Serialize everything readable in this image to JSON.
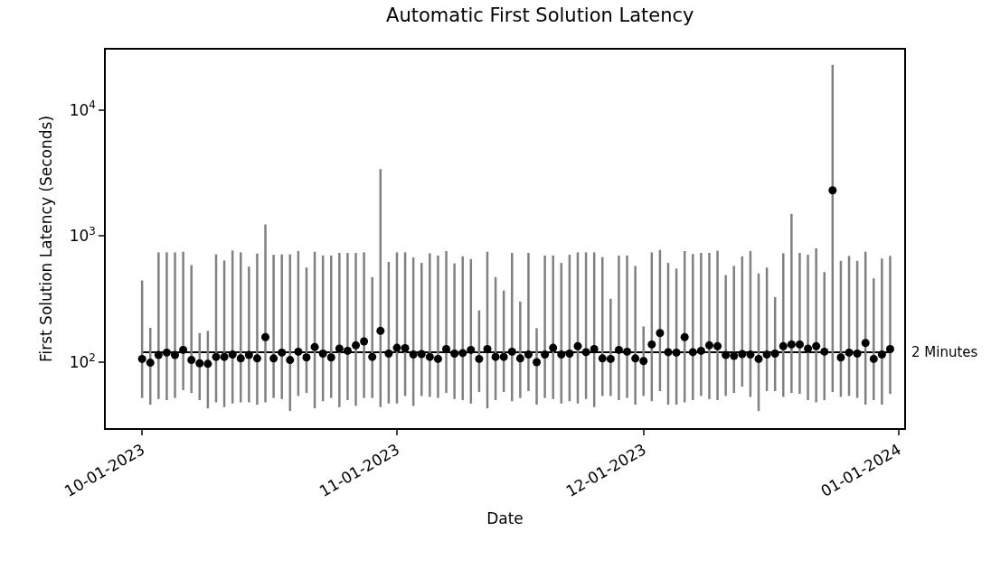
{
  "chart_data": {
    "type": "scatter",
    "title": "Automatic First Solution Latency",
    "xlabel": "Date",
    "ylabel": "First Solution Latency (Seconds)",
    "x": [
      "2023-10-01",
      "2023-10-02",
      "2023-10-03",
      "2023-10-04",
      "2023-10-05",
      "2023-10-06",
      "2023-10-07",
      "2023-10-08",
      "2023-10-09",
      "2023-10-10",
      "2023-10-11",
      "2023-10-12",
      "2023-10-13",
      "2023-10-14",
      "2023-10-15",
      "2023-10-16",
      "2023-10-17",
      "2023-10-18",
      "2023-10-19",
      "2023-10-20",
      "2023-10-21",
      "2023-10-22",
      "2023-10-23",
      "2023-10-24",
      "2023-10-25",
      "2023-10-26",
      "2023-10-27",
      "2023-10-28",
      "2023-10-29",
      "2023-10-30",
      "2023-10-31",
      "2023-11-01",
      "2023-11-02",
      "2023-11-03",
      "2023-11-04",
      "2023-11-05",
      "2023-11-06",
      "2023-11-07",
      "2023-11-08",
      "2023-11-09",
      "2023-11-10",
      "2023-11-11",
      "2023-11-12",
      "2023-11-13",
      "2023-11-14",
      "2023-11-15",
      "2023-11-16",
      "2023-11-17",
      "2023-11-18",
      "2023-11-19",
      "2023-11-20",
      "2023-11-21",
      "2023-11-22",
      "2023-11-23",
      "2023-11-24",
      "2023-11-25",
      "2023-11-26",
      "2023-11-27",
      "2023-11-28",
      "2023-11-29",
      "2023-11-30",
      "2023-12-01",
      "2023-12-02",
      "2023-12-03",
      "2023-12-04",
      "2023-12-05",
      "2023-12-06",
      "2023-12-07",
      "2023-12-08",
      "2023-12-09",
      "2023-12-10",
      "2023-12-11",
      "2023-12-12",
      "2023-12-13",
      "2023-12-14",
      "2023-12-15",
      "2023-12-16",
      "2023-12-17",
      "2023-12-18",
      "2023-12-19",
      "2023-12-20",
      "2023-12-21",
      "2023-12-22",
      "2023-12-23",
      "2023-12-24",
      "2023-12-25",
      "2023-12-26",
      "2023-12-27",
      "2023-12-28",
      "2023-12-29",
      "2023-12-30",
      "2023-12-31"
    ],
    "series": [
      {
        "color": "#000000",
        "values": [
          106,
          99,
          114,
          119,
          114,
          125,
          104,
          98,
          97,
          110,
          110,
          115,
          107,
          114,
          107,
          158,
          107,
          119,
          104,
          121,
          109,
          132,
          117,
          109,
          128,
          123,
          136,
          146,
          110,
          177,
          117,
          130,
          129,
          115,
          116,
          110,
          106,
          127,
          117,
          118,
          125,
          106,
          127,
          110,
          110,
          121,
          107,
          115,
          100,
          115,
          130,
          115,
          117,
          134,
          120,
          127,
          107,
          106,
          125,
          121,
          107,
          102,
          138,
          170,
          120,
          119,
          158,
          120,
          123,
          136,
          134,
          114,
          112,
          116,
          115,
          106,
          115,
          117,
          134,
          138,
          138,
          128,
          134,
          121,
          2300,
          109,
          119,
          117,
          142,
          106,
          115,
          127
        ],
        "errors": [
          [
            52,
            444
          ],
          [
            46,
            187
          ],
          [
            51,
            742
          ],
          [
            50,
            742
          ],
          [
            52,
            742
          ],
          [
            60,
            750
          ],
          [
            57,
            588
          ],
          [
            50,
            170
          ],
          [
            43,
            177
          ],
          [
            48,
            715
          ],
          [
            44,
            640
          ],
          [
            47,
            768
          ],
          [
            48,
            742
          ],
          [
            48,
            572
          ],
          [
            46,
            725
          ],
          [
            48,
            1234
          ],
          [
            52,
            710
          ],
          [
            51,
            715
          ],
          [
            41,
            715
          ],
          [
            54,
            760
          ],
          [
            57,
            563
          ],
          [
            43,
            750
          ],
          [
            49,
            700
          ],
          [
            52,
            700
          ],
          [
            44,
            735
          ],
          [
            50,
            735
          ],
          [
            45,
            735
          ],
          [
            52,
            742
          ],
          [
            52,
            472
          ],
          [
            44,
            3388
          ],
          [
            47,
            623
          ],
          [
            47,
            742
          ],
          [
            54,
            742
          ],
          [
            45,
            676
          ],
          [
            54,
            612
          ],
          [
            53,
            730
          ],
          [
            52,
            700
          ],
          [
            57,
            760
          ],
          [
            51,
            607
          ],
          [
            50,
            690
          ],
          [
            47,
            657
          ],
          [
            58,
            257
          ],
          [
            43,
            750
          ],
          [
            50,
            472
          ],
          [
            58,
            370
          ],
          [
            49,
            735
          ],
          [
            52,
            302
          ],
          [
            59,
            735
          ],
          [
            46,
            186
          ],
          [
            52,
            700
          ],
          [
            51,
            700
          ],
          [
            47,
            612
          ],
          [
            49,
            710
          ],
          [
            47,
            742
          ],
          [
            51,
            742
          ],
          [
            44,
            742
          ],
          [
            54,
            680
          ],
          [
            54,
            318
          ],
          [
            50,
            700
          ],
          [
            52,
            700
          ],
          [
            46,
            579
          ],
          [
            54,
            192
          ],
          [
            49,
            742
          ],
          [
            59,
            776
          ],
          [
            46,
            612
          ],
          [
            46,
            553
          ],
          [
            48,
            760
          ],
          [
            50,
            720
          ],
          [
            54,
            735
          ],
          [
            51,
            735
          ],
          [
            50,
            764
          ],
          [
            54,
            490
          ],
          [
            57,
            579
          ],
          [
            64,
            690
          ],
          [
            53,
            760
          ],
          [
            41,
            505
          ],
          [
            59,
            563
          ],
          [
            59,
            328
          ],
          [
            53,
            730
          ],
          [
            57,
            1500
          ],
          [
            56,
            735
          ],
          [
            50,
            710
          ],
          [
            48,
            800
          ],
          [
            50,
            518
          ],
          [
            58,
            22750
          ],
          [
            53,
            635
          ],
          [
            54,
            695
          ],
          [
            52,
            635
          ],
          [
            46,
            750
          ],
          [
            50,
            461
          ],
          [
            46,
            663
          ],
          [
            56,
            695
          ]
        ]
      }
    ],
    "marker": "circle",
    "log": "y",
    "ylim": [
      30,
      30000
    ],
    "yticks": [
      {
        "value": 100,
        "label": "10$^{2}$"
      },
      {
        "value": 1000,
        "label": "10$^{3}$"
      },
      {
        "value": 10000,
        "label": "10$^{4}$"
      }
    ],
    "xlim": [
      "2023-09-26T14:00",
      "2024-01-01T17:00"
    ],
    "xticks": [
      {
        "value": "2023-10-01",
        "label": "10-01-2023"
      },
      {
        "value": "2023-11-01",
        "label": "11-01-2023"
      },
      {
        "value": "2023-12-01",
        "label": "12-01-2023"
      },
      {
        "value": "2024-01-01",
        "label": "01-01-2024"
      }
    ],
    "ref_lines": [
      {
        "axis": "y",
        "value": 120,
        "label": "2 Minutes",
        "color": "#000000",
        "line_style": "solid"
      }
    ]
  }
}
